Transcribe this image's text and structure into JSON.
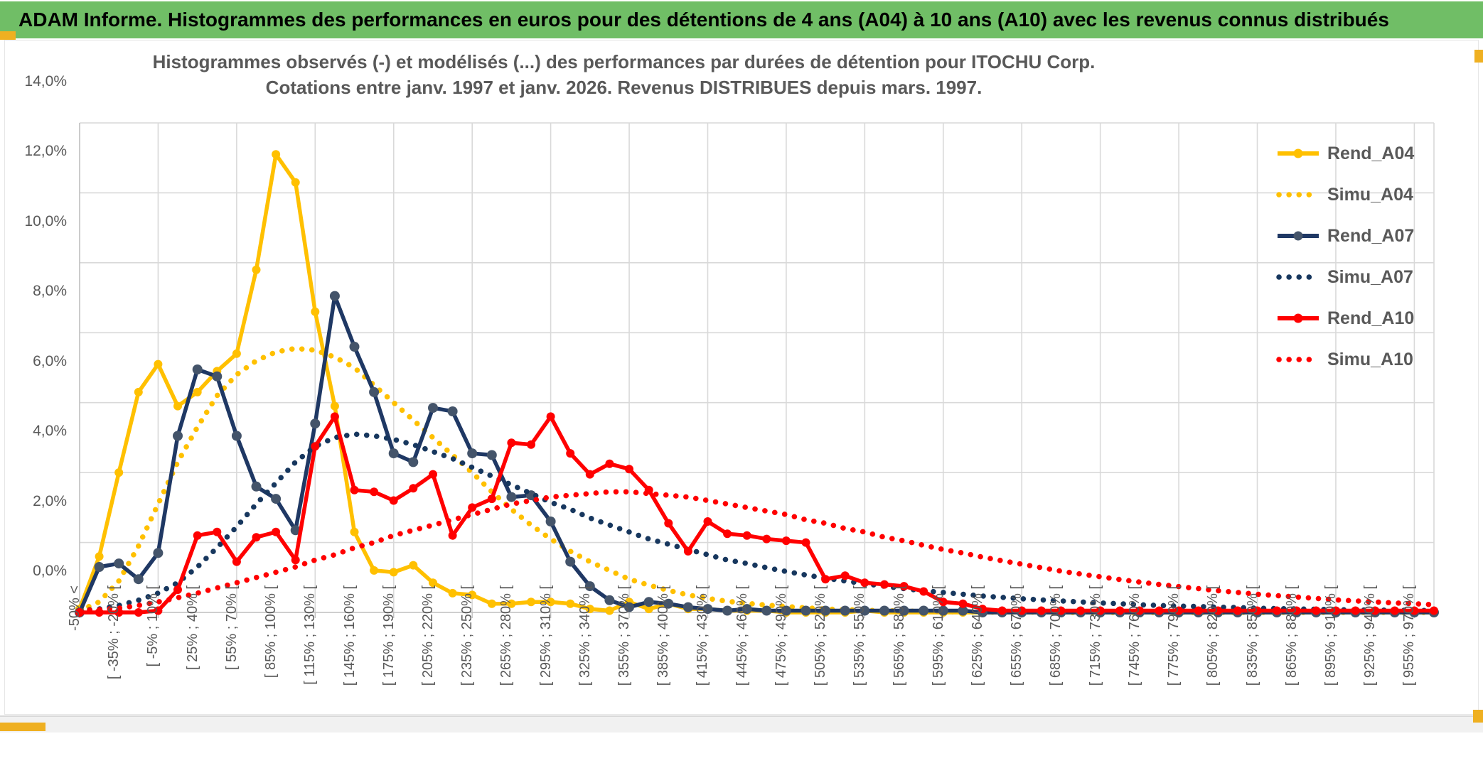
{
  "banner": {
    "title": "ADAM Informe. Histogrammes des performances en euros pour des détentions de 4 ans (A04) à 10 ans (A10) avec les revenus connus distribués"
  },
  "chart": {
    "title_line1": "Histogrammes observés (-) et modélisés (...) des performances par durées de détention pour ITOCHU Corp.",
    "title_line2": "Cotations entre janv. 1997 et janv. 2026. Revenus DISTRIBUES depuis mars. 1997."
  },
  "chart_data": {
    "type": "line",
    "title": "Histogrammes observés (-) et modélisés (...) des performances par durées de détention pour ITOCHU Corp.",
    "subtitle": "Cotations entre janv. 1997 et janv. 2026. Revenus DISTRIBUES depuis mars. 1997.",
    "ylim": [
      0,
      14
    ],
    "grid": true,
    "legend_position": "right-inside",
    "y_ticks": [
      {
        "value": 14,
        "label": "14,0%"
      },
      {
        "value": 12,
        "label": "12,0%"
      },
      {
        "value": 10,
        "label": "10,0%"
      },
      {
        "value": 8,
        "label": "8,0%"
      },
      {
        "value": 6,
        "label": "6,0%"
      },
      {
        "value": 4,
        "label": "4,0%"
      },
      {
        "value": 2,
        "label": "2,0%"
      },
      {
        "value": 0,
        "label": "0,0%"
      }
    ],
    "x_bin_count": 70,
    "x_labels": [
      "-50% <",
      "[ -35% ; -20% [",
      "[ -5% ; 10% [",
      "[ 25% ; 40% [",
      "[ 55% ; 70% [",
      "[ 85% ; 100% [",
      "[ 115% ; 130% [",
      "[ 145% ; 160% [",
      "[ 175% ; 190% [",
      "[ 205% ; 220% [",
      "[ 235% ; 250% [",
      "[ 265% ; 280% [",
      "[ 295% ; 310% [",
      "[ 325% ; 340% [",
      "[ 355% ; 370% [",
      "[ 385% ; 400% [",
      "[ 415% ; 430% [",
      "[ 445% ; 460% [",
      "[ 475% ; 490% [",
      "[ 505% ; 520% [",
      "[ 535% ; 550% [",
      "[ 565% ; 580% [",
      "[ 595% ; 610% [",
      "[ 625% ; 640% [",
      "[ 655% ; 670% [",
      "[ 685% ; 700% [",
      "[ 715% ; 730% [",
      "[ 745% ; 760% [",
      "[ 775% ; 790% [",
      "[ 805% ; 820% [",
      "[ 835% ; 850% [",
      "[ 865% ; 880% [",
      "[ 895% ; 910% [",
      "[ 925% ; 940% [",
      "[ 955% ; 970% ["
    ],
    "series": [
      {
        "name": "Rend_A04",
        "color": "#FFC000",
        "style": "solid",
        "marker_color": "#FFC000",
        "values": [
          0.1,
          1.6,
          4.0,
          6.3,
          7.1,
          5.9,
          6.3,
          6.9,
          7.4,
          9.8,
          13.1,
          12.3,
          8.6,
          5.9,
          2.3,
          1.2,
          1.15,
          1.35,
          0.85,
          0.55,
          0.5,
          0.25,
          0.25,
          0.3,
          0.3,
          0.25,
          0.1,
          0.05,
          0.3,
          0.1,
          0.25,
          0.1,
          0.1,
          0.05,
          0.05,
          0.05,
          0,
          0,
          0,
          0,
          0.05,
          0,
          0,
          0,
          0,
          0,
          0,
          0,
          0,
          0,
          0,
          0,
          0,
          0,
          0,
          0,
          0,
          0,
          0,
          0,
          0,
          0,
          0,
          0,
          0,
          0,
          0,
          0,
          0,
          0
        ]
      },
      {
        "name": "Simu_A04",
        "color": "#FFC000",
        "style": "dotted",
        "values": [
          0.05,
          0.3,
          0.9,
          1.9,
          3.1,
          4.3,
          5.3,
          6.2,
          6.8,
          7.2,
          7.45,
          7.55,
          7.5,
          7.3,
          7.0,
          6.5,
          6.0,
          5.5,
          5.0,
          4.5,
          4.0,
          3.45,
          2.95,
          2.5,
          2.1,
          1.75,
          1.45,
          1.2,
          0.95,
          0.78,
          0.63,
          0.5,
          0.4,
          0.32,
          0.26,
          0.21,
          0.17,
          0.13,
          0.1,
          0.08,
          0.06,
          0.05,
          0.04,
          0.03,
          0.02,
          0.02,
          0.01,
          0.01,
          0.01,
          0.01,
          0,
          0,
          0,
          0,
          0,
          0,
          0,
          0,
          0,
          0,
          0,
          0,
          0,
          0,
          0,
          0,
          0,
          0,
          0,
          0
        ]
      },
      {
        "name": "Rend_A07",
        "color": "#1F3864",
        "style": "solid",
        "marker_color": "#44546A",
        "values": [
          0,
          1.3,
          1.4,
          0.95,
          1.7,
          5.05,
          6.95,
          6.75,
          5.05,
          3.6,
          3.25,
          2.35,
          5.4,
          9.05,
          7.6,
          6.3,
          4.55,
          4.3,
          5.85,
          5.75,
          4.55,
          4.5,
          3.3,
          3.35,
          2.6,
          1.45,
          0.75,
          0.35,
          0.15,
          0.3,
          0.25,
          0.15,
          0.1,
          0.05,
          0.1,
          0.05,
          0.05,
          0.05,
          0.05,
          0.05,
          0.05,
          0.05,
          0.05,
          0.05,
          0.05,
          0.05,
          0,
          0,
          0,
          0,
          0,
          0,
          0,
          0,
          0,
          0,
          0,
          0,
          0,
          0,
          0,
          0,
          0,
          0,
          0,
          0,
          0,
          0,
          0,
          0
        ]
      },
      {
        "name": "Simu_A07",
        "color": "#17375E",
        "style": "dotted",
        "values": [
          0.05,
          0.1,
          0.2,
          0.35,
          0.55,
          0.85,
          1.3,
          1.85,
          2.45,
          3.1,
          3.7,
          4.3,
          4.75,
          5.0,
          5.1,
          5.05,
          4.95,
          4.8,
          4.6,
          4.4,
          4.15,
          3.9,
          3.65,
          3.4,
          3.15,
          2.95,
          2.7,
          2.5,
          2.3,
          2.1,
          1.95,
          1.8,
          1.65,
          1.5,
          1.4,
          1.28,
          1.17,
          1.07,
          0.98,
          0.9,
          0.82,
          0.75,
          0.68,
          0.62,
          0.57,
          0.52,
          0.47,
          0.43,
          0.39,
          0.36,
          0.33,
          0.3,
          0.27,
          0.25,
          0.22,
          0.2,
          0.18,
          0.17,
          0.15,
          0.14,
          0.12,
          0.11,
          0.1,
          0.09,
          0.08,
          0.07,
          0.07,
          0.06,
          0.06,
          0.05
        ]
      },
      {
        "name": "Rend_A10",
        "color": "#FF0000",
        "style": "solid",
        "marker_color": "#FF0000",
        "values": [
          0,
          0,
          0,
          0,
          0.05,
          0.65,
          2.2,
          2.3,
          1.45,
          2.15,
          2.3,
          1.5,
          4.75,
          5.6,
          3.5,
          3.45,
          3.2,
          3.55,
          3.95,
          2.2,
          3.0,
          3.25,
          4.85,
          4.8,
          5.6,
          4.55,
          3.95,
          4.25,
          4.1,
          3.5,
          2.55,
          1.75,
          2.6,
          2.25,
          2.2,
          2.1,
          2.05,
          2.0,
          0.95,
          1.05,
          0.85,
          0.8,
          0.75,
          0.6,
          0.3,
          0.25,
          0.1,
          0.05,
          0.05,
          0.05,
          0.05,
          0.05,
          0.05,
          0.05,
          0.05,
          0.05,
          0.05,
          0.05,
          0.05,
          0.05,
          0.05,
          0.05,
          0.05,
          0.05,
          0.05,
          0.05,
          0.05,
          0.05,
          0.05,
          0.05
        ]
      },
      {
        "name": "Simu_A10",
        "color": "#FF0000",
        "style": "dotted",
        "values": [
          0.05,
          0.08,
          0.12,
          0.2,
          0.3,
          0.42,
          0.55,
          0.7,
          0.85,
          1.0,
          1.15,
          1.3,
          1.5,
          1.65,
          1.85,
          2.0,
          2.2,
          2.35,
          2.5,
          2.65,
          2.8,
          2.95,
          3.1,
          3.2,
          3.3,
          3.35,
          3.4,
          3.45,
          3.45,
          3.4,
          3.35,
          3.3,
          3.2,
          3.1,
          3.0,
          2.9,
          2.8,
          2.65,
          2.55,
          2.4,
          2.3,
          2.15,
          2.05,
          1.92,
          1.8,
          1.7,
          1.58,
          1.48,
          1.38,
          1.28,
          1.18,
          1.1,
          1.02,
          0.94,
          0.87,
          0.8,
          0.74,
          0.68,
          0.62,
          0.57,
          0.52,
          0.48,
          0.44,
          0.4,
          0.36,
          0.33,
          0.3,
          0.27,
          0.25,
          0.22
        ]
      }
    ],
    "colors": {
      "grid": "#D9D9D9",
      "axis": "#BFBFBF",
      "axis_text": "#595959",
      "title_text": "#595959",
      "banner_green": "#70BE66",
      "handle_gold": "#EFB021"
    }
  }
}
